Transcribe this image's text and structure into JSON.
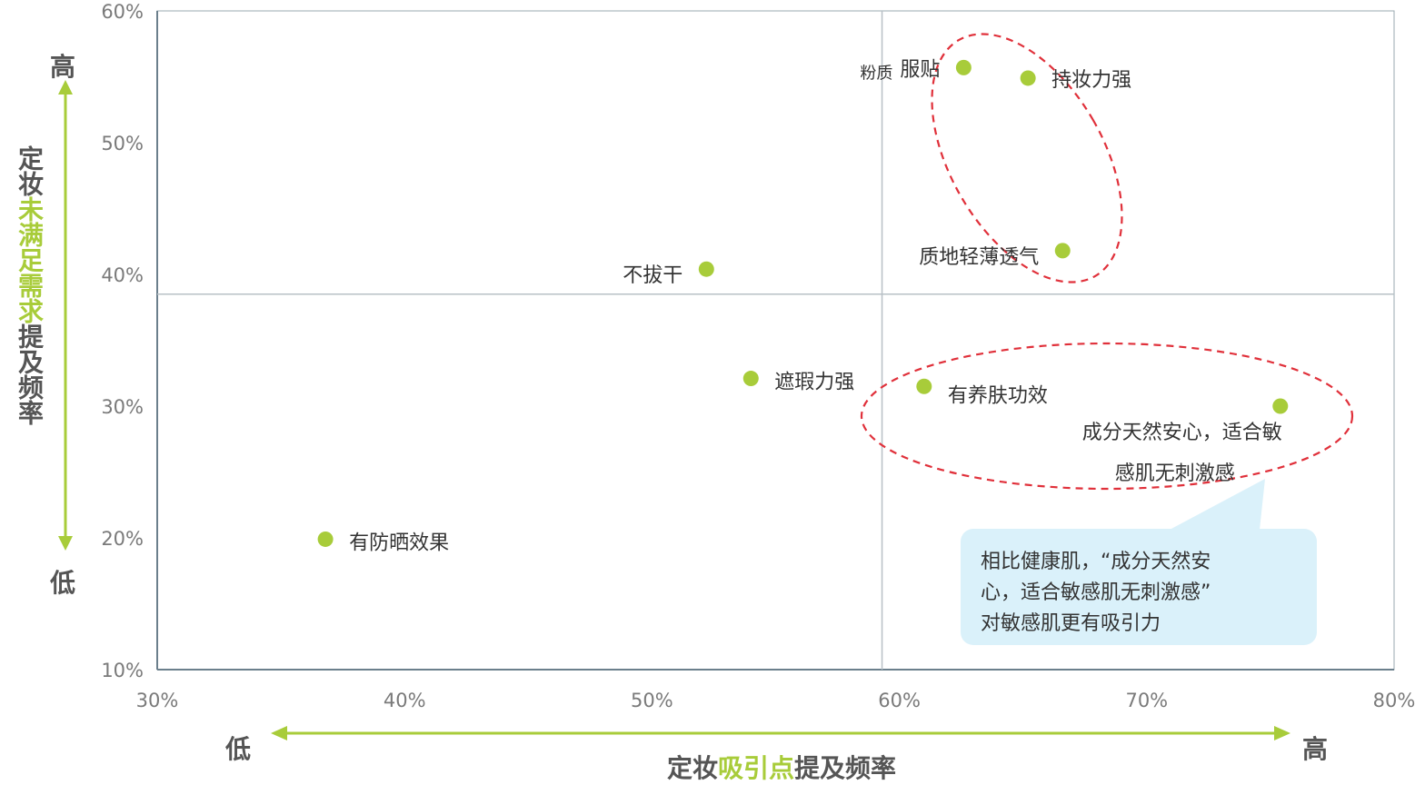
{
  "chart_data": {
    "type": "scatter",
    "x_ticks": [
      "30%",
      "40%",
      "50%",
      "60%",
      "70%",
      "80%"
    ],
    "y_ticks": [
      "10%",
      "20%",
      "30%",
      "40%",
      "50%",
      "60%"
    ],
    "xlim": [
      0.3,
      0.8
    ],
    "ylim": [
      0.1,
      0.6
    ],
    "quadrant_lines": {
      "x": 0.593,
      "y": 0.385
    },
    "points": [
      {
        "label": "服贴",
        "prefix": "粉质",
        "x": 0.626,
        "y": 0.557
      },
      {
        "label": "持妆力强",
        "x": 0.652,
        "y": 0.549
      },
      {
        "label": "质地轻薄透气",
        "x": 0.666,
        "y": 0.418
      },
      {
        "label": "不拔干",
        "x": 0.522,
        "y": 0.404
      },
      {
        "label": "遮瑕力强",
        "x": 0.54,
        "y": 0.321
      },
      {
        "label": "有养肤功效",
        "x": 0.61,
        "y": 0.315
      },
      {
        "label": "成分天然安心，适合敏感肌无刺激感",
        "label_lines": [
          "成分天然安心，适合敏",
          "感肌无刺激感"
        ],
        "x": 0.754,
        "y": 0.3
      },
      {
        "label": "有防晒效果",
        "x": 0.368,
        "y": 0.199
      }
    ],
    "point_color": "#a8cc3a",
    "highlight_color": "#e0303a",
    "axis_arrow_color": "#a8cc3a"
  },
  "y_axis": {
    "high": "高",
    "low": "低",
    "title_parts": [
      {
        "text": "定妆",
        "highlight": false
      },
      {
        "text": "未满足需求",
        "highlight": true
      },
      {
        "text": "提及频率",
        "highlight": false
      }
    ]
  },
  "x_axis": {
    "high": "高",
    "low": "低",
    "title_parts": [
      {
        "text": "定妆",
        "highlight": false
      },
      {
        "text": "吸引点",
        "highlight": true
      },
      {
        "text": "提及频率",
        "highlight": false
      }
    ]
  },
  "callout": {
    "lines": [
      "相比健康肌，“成分天然安",
      "心，适合敏感肌无刺激感”",
      "对敏感肌更有吸引力"
    ]
  }
}
